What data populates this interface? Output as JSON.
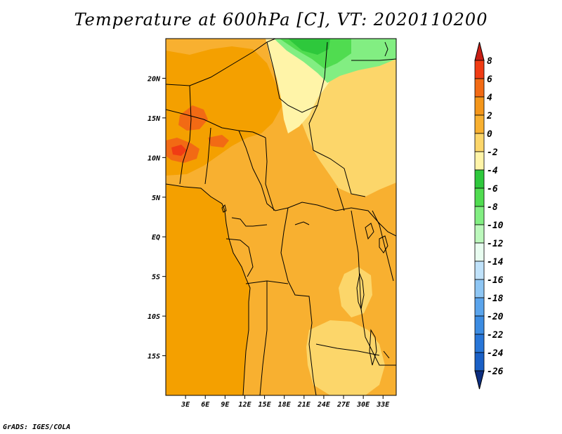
{
  "title": "Temperature at 600hPa [C], VT: 2020110200",
  "footer": "GrADS: IGES/COLA",
  "map": {
    "lon_range": [
      0,
      35
    ],
    "lat_range": [
      -20,
      25
    ],
    "lat_ticks": [
      "20N",
      "15N",
      "10N",
      "5N",
      "EQ",
      "5S",
      "10S",
      "15S"
    ],
    "lon_ticks": [
      "3E",
      "6E",
      "9E",
      "12E",
      "15E",
      "18E",
      "21E",
      "24E",
      "27E",
      "30E",
      "33E"
    ]
  },
  "colorbar": {
    "labels": [
      "8",
      "6",
      "4",
      "2",
      "0",
      "-2",
      "-4",
      "-6",
      "-8",
      "-10",
      "-12",
      "-14",
      "-16",
      "-18",
      "-20",
      "-22",
      "-24",
      "-26"
    ],
    "colors": [
      "#c81e14",
      "#f03c14",
      "#f26a14",
      "#f4961a",
      "#f8b030",
      "#fcd66a",
      "#fff4a8",
      "#2ec83c",
      "#50dc50",
      "#82ee82",
      "#bcf8bc",
      "#e8fcf0",
      "#c0e2fa",
      "#8ec6f4",
      "#5aa4ec",
      "#3c8ce2",
      "#2876d8",
      "#1a60c6",
      "#124aaa",
      "#0c2e80"
    ]
  },
  "legend": {
    "colors": {
      "ocean": "#f4a000",
      "land_warm": "#f8b030",
      "land_cool": "#fcd66a",
      "cold_zone": "#fff4a8",
      "hot": "#f26a14",
      "very_hot": "#f03c14",
      "green_dark": "#2ec83c",
      "green_mid": "#50dc50",
      "green_light": "#82ee82"
    }
  }
}
